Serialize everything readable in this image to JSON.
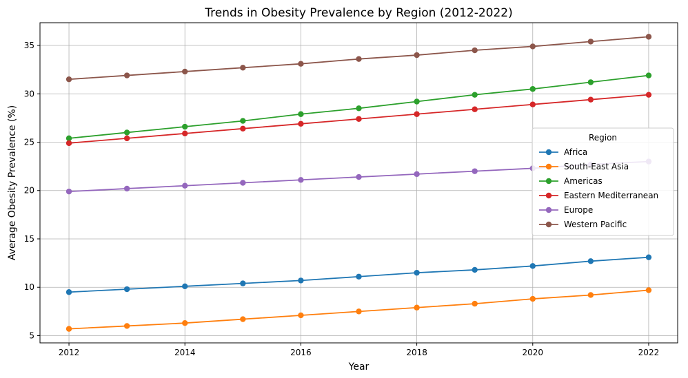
{
  "chart_data": {
    "type": "line",
    "title": "Trends in Obesity Prevalence by Region (2012-2022)",
    "xlabel": "Year",
    "ylabel": "Average Obesity Prevalence (%)",
    "x": [
      2012,
      2013,
      2014,
      2015,
      2016,
      2017,
      2018,
      2019,
      2020,
      2021,
      2022
    ],
    "xlim": [
      2011.5,
      2022.5
    ],
    "ylim": [
      4.25,
      37.35
    ],
    "xticks": [
      2012,
      2014,
      2016,
      2018,
      2020,
      2022
    ],
    "yticks": [
      5,
      10,
      15,
      20,
      25,
      30,
      35
    ],
    "grid": true,
    "legend": {
      "title": "Region",
      "placement": "center-right"
    },
    "series": [
      {
        "name": "Africa",
        "color": "#1f77b4",
        "values": [
          9.5,
          9.8,
          10.1,
          10.4,
          10.7,
          11.1,
          11.5,
          11.8,
          12.2,
          12.7,
          13.1
        ]
      },
      {
        "name": "South-East Asia",
        "color": "#ff7f0e",
        "values": [
          5.7,
          6.0,
          6.3,
          6.7,
          7.1,
          7.5,
          7.9,
          8.3,
          8.8,
          9.2,
          9.7
        ]
      },
      {
        "name": "Americas",
        "color": "#2ca02c",
        "values": [
          25.4,
          26.0,
          26.6,
          27.2,
          27.9,
          28.5,
          29.2,
          29.9,
          30.5,
          31.2,
          31.9
        ]
      },
      {
        "name": "Eastern Mediterranean",
        "color": "#d62728",
        "values": [
          24.9,
          25.4,
          25.9,
          26.4,
          26.9,
          27.4,
          27.9,
          28.4,
          28.9,
          29.4,
          29.9
        ]
      },
      {
        "name": "Europe",
        "color": "#9467bd",
        "values": [
          19.9,
          20.2,
          20.5,
          20.8,
          21.1,
          21.4,
          21.7,
          22.0,
          22.3,
          22.7,
          23.0
        ]
      },
      {
        "name": "Western Pacific",
        "color": "#8c564b",
        "values": [
          31.5,
          31.9,
          32.3,
          32.7,
          33.1,
          33.6,
          34.0,
          34.5,
          34.9,
          35.4,
          35.9
        ]
      }
    ]
  }
}
